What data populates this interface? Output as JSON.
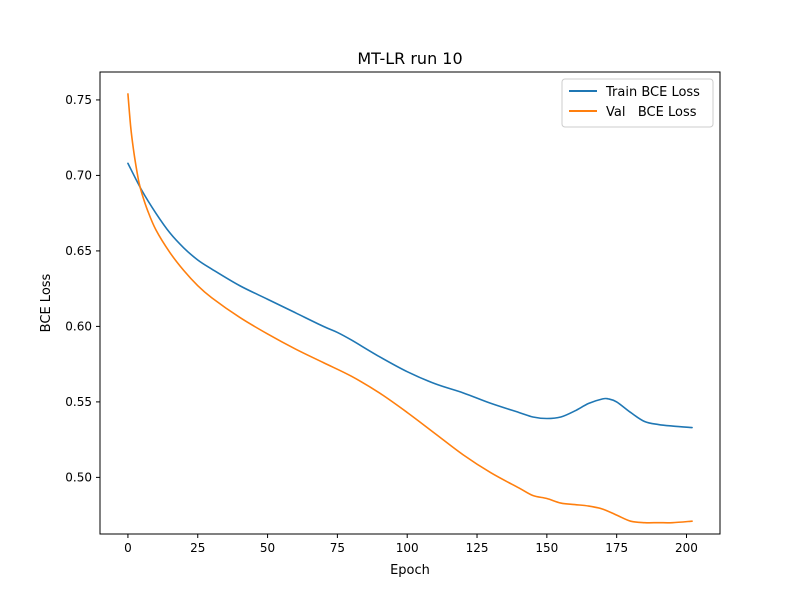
{
  "chart_data": {
    "type": "line",
    "title": "MT-LR run 10",
    "xlabel": "Epoch",
    "ylabel": "BCE Loss",
    "xlim": [
      -10,
      212
    ],
    "ylim": [
      0.4625,
      0.7685
    ],
    "xticks": [
      0,
      25,
      50,
      75,
      100,
      125,
      150,
      175,
      200
    ],
    "xtick_labels": [
      "0",
      "25",
      "50",
      "75",
      "100",
      "125",
      "150",
      "175",
      "200"
    ],
    "yticks": [
      0.5,
      0.55,
      0.6,
      0.65,
      0.7,
      0.75
    ],
    "ytick_labels": [
      "0.50",
      "0.55",
      "0.60",
      "0.65",
      "0.70",
      "0.75"
    ],
    "grid": false,
    "legend_position": "top-right",
    "series": [
      {
        "name": "Train BCE Loss",
        "color": "#1f77b4",
        "x": [
          0,
          5,
          10,
          15,
          20,
          25,
          30,
          40,
          50,
          60,
          70,
          75,
          80,
          90,
          100,
          110,
          120,
          130,
          140,
          145,
          150,
          155,
          160,
          165,
          170,
          172,
          175,
          180,
          185,
          190,
          195,
          202
        ],
        "y": [
          0.708,
          0.69,
          0.675,
          0.662,
          0.652,
          0.644,
          0.638,
          0.627,
          0.618,
          0.609,
          0.6,
          0.596,
          0.591,
          0.58,
          0.57,
          0.562,
          0.556,
          0.549,
          0.543,
          0.54,
          0.539,
          0.54,
          0.544,
          0.549,
          0.552,
          0.552,
          0.55,
          0.543,
          0.537,
          0.535,
          0.534,
          0.533
        ]
      },
      {
        "name": "Val   BCE Loss",
        "color": "#ff7f0e",
        "x": [
          0,
          1,
          2,
          3,
          4,
          5,
          7,
          10,
          15,
          20,
          25,
          30,
          40,
          50,
          60,
          70,
          80,
          90,
          100,
          110,
          120,
          130,
          140,
          145,
          150,
          155,
          160,
          165,
          170,
          175,
          180,
          185,
          190,
          195,
          202
        ],
        "y": [
          0.754,
          0.732,
          0.717,
          0.705,
          0.695,
          0.688,
          0.677,
          0.664,
          0.649,
          0.637,
          0.627,
          0.619,
          0.606,
          0.595,
          0.585,
          0.576,
          0.567,
          0.556,
          0.543,
          0.529,
          0.515,
          0.503,
          0.493,
          0.488,
          0.486,
          0.483,
          0.482,
          0.481,
          0.479,
          0.475,
          0.471,
          0.47,
          0.47,
          0.47,
          0.471
        ]
      }
    ]
  }
}
